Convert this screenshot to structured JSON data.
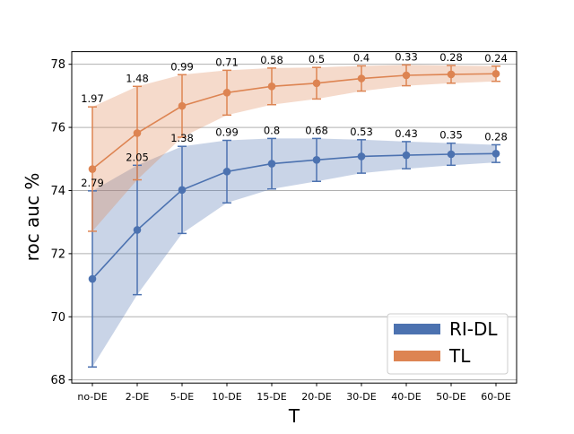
{
  "chart_data": {
    "type": "line",
    "title": "",
    "xlabel": "T",
    "ylabel": "roc auc %",
    "categories": [
      "no-DE",
      "2-DE",
      "5-DE",
      "10-DE",
      "15-DE",
      "20-DE",
      "30-DE",
      "40-DE",
      "50-DE",
      "60-DE"
    ],
    "ylim": [
      67.9,
      78.4
    ],
    "yticks": [
      "68",
      "70",
      "72",
      "74",
      "76",
      "78"
    ],
    "grid": "horizontal",
    "legend_position": "lower-right",
    "series": [
      {
        "name": "RI-DL",
        "color": "#4c72b0",
        "values": [
          71.2,
          72.75,
          74.02,
          74.6,
          74.85,
          74.97,
          75.08,
          75.12,
          75.15,
          75.17
        ],
        "errors": [
          2.79,
          2.05,
          1.38,
          0.99,
          0.8,
          0.68,
          0.53,
          0.43,
          0.35,
          0.28
        ],
        "error_labels": [
          "2.79",
          "2.05",
          "1.38",
          "0.99",
          "0.8",
          "0.68",
          "0.53",
          "0.43",
          "0.35",
          "0.28"
        ]
      },
      {
        "name": "TL",
        "color": "#dd8452",
        "values": [
          74.68,
          75.82,
          76.68,
          77.1,
          77.3,
          77.4,
          77.55,
          77.65,
          77.68,
          77.7
        ],
        "errors": [
          1.97,
          1.48,
          0.99,
          0.71,
          0.58,
          0.5,
          0.4,
          0.33,
          0.28,
          0.24
        ],
        "error_labels": [
          "1.97",
          "1.48",
          "0.99",
          "0.71",
          "0.58",
          "0.5",
          "0.4",
          "0.33",
          "0.28",
          "0.24"
        ]
      }
    ]
  }
}
